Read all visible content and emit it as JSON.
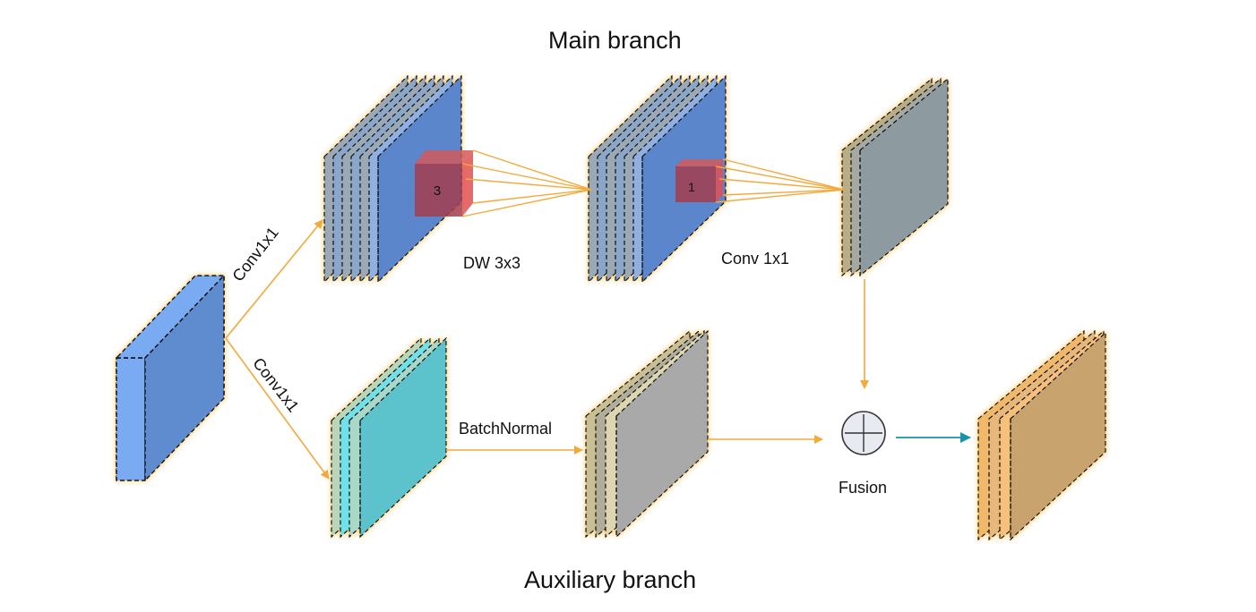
{
  "titles": {
    "main_branch": "Main branch",
    "auxiliary_branch": "Auxiliary branch"
  },
  "labels": {
    "conv_top": "Conv1x1",
    "conv_bottom": "Conv1x1",
    "dw": "DW 3x3",
    "conv_1x1": "Conv 1x1",
    "batch_normal": "BatchNormal",
    "fusion": "Fusion"
  },
  "kernels": {
    "dw_kernel": "3",
    "pw_kernel": "1"
  },
  "colors": {
    "arrow": "#f4a93b",
    "fusion_arrow": "#1a93a8",
    "glow": "#ffc04d",
    "input": "#5f8bcf",
    "main_stack": "#5b86cc",
    "main_output": "#8d9ba0",
    "aux_input": "#5bc2cc",
    "aux_bn": "#a9a9a9",
    "result": "#c9a36e",
    "kernel": "#a33d4e"
  }
}
